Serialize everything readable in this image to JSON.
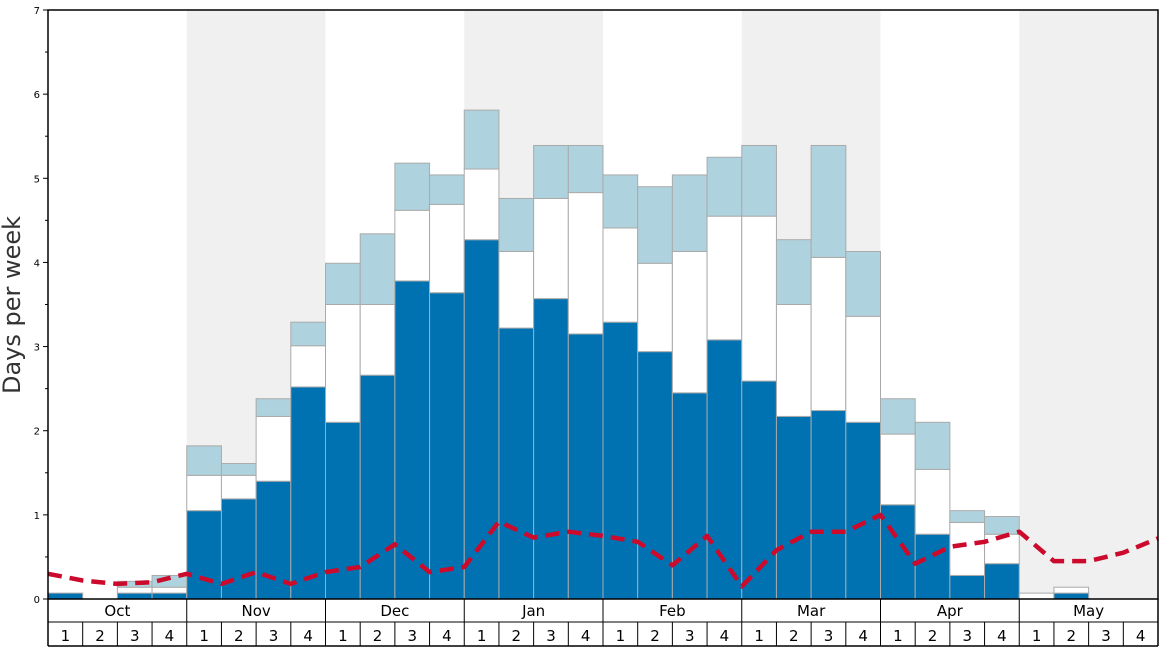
{
  "chart_data": {
    "type": "bar",
    "stacked": true,
    "ylabel": "Days per week",
    "ylim": [
      0,
      7
    ],
    "y_ticks": [
      "0",
      "1",
      "2",
      "3",
      "4",
      "5",
      "6",
      "7"
    ],
    "months": [
      "Oct",
      "Nov",
      "Dec",
      "Jan",
      "Feb",
      "Mar",
      "Apr",
      "May"
    ],
    "week_labels": [
      "1",
      "2",
      "3",
      "4"
    ],
    "series": [
      {
        "name": "Lower segment",
        "values": [
          0.07,
          0,
          0.07,
          0.07,
          1.05,
          1.19,
          1.4,
          2.52,
          2.1,
          2.66,
          3.78,
          3.64,
          4.27,
          3.22,
          3.57,
          3.15,
          3.29,
          2.94,
          2.45,
          3.08,
          2.59,
          2.17,
          2.24,
          2.1,
          1.12,
          0.77,
          0.28,
          0.42,
          0,
          0.07,
          0,
          0
        ]
      },
      {
        "name": "Middle segment",
        "values": [
          0,
          0,
          0.07,
          0.07,
          0.42,
          0.28,
          0.77,
          0.49,
          1.4,
          0.84,
          0.84,
          1.05,
          0.84,
          0.91,
          1.19,
          1.68,
          1.12,
          1.05,
          1.68,
          1.47,
          1.96,
          1.33,
          1.82,
          1.26,
          0.84,
          0.77,
          0.63,
          0.35,
          0.07,
          0.07,
          0,
          0
        ]
      },
      {
        "name": "Upper segment",
        "values": [
          0,
          0,
          0.07,
          0.14,
          0.35,
          0.14,
          0.21,
          0.28,
          0.49,
          0.84,
          0.56,
          0.35,
          0.7,
          0.63,
          0.63,
          0.56,
          0.63,
          0.91,
          0.91,
          0.7,
          0.84,
          0.77,
          1.33,
          0.77,
          0.42,
          0.56,
          0.14,
          0.21,
          0,
          0,
          0,
          0
        ]
      },
      {
        "name": "Trend line",
        "values": [
          0.3,
          0.22,
          0.18,
          0.2,
          0.3,
          0.18,
          0.32,
          0.18,
          0.32,
          0.38,
          0.65,
          0.32,
          0.38,
          0.92,
          0.73,
          0.8,
          0.75,
          0.68,
          0.4,
          0.75,
          0.15,
          0.58,
          0.8,
          0.8,
          1.0,
          0.42,
          0.62,
          0.68,
          0.8,
          0.45,
          0.45,
          0.55,
          0.72
        ]
      }
    ],
    "colors": {
      "lower": "#0072b2",
      "middle": "#ffffff",
      "upper": "#afd3de",
      "trend": "#cc0a2c",
      "band": "#f0f0f0",
      "bar_edge": "#aaaaaa"
    }
  }
}
